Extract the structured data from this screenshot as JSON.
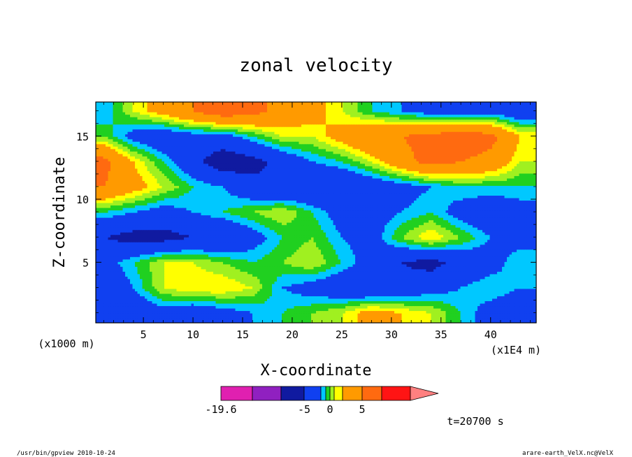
{
  "chart_data": {
    "type": "heatmap",
    "title": "zonal velocity",
    "xlabel": "X-coordinate",
    "ylabel": "Z-coordinate",
    "x_unit": "(x1E4 m)",
    "y_unit": "(x1000 m)",
    "xlim": [
      0.2,
      44.6
    ],
    "ylim": [
      0.2,
      17.7
    ],
    "x_ticks": [
      "5",
      "10",
      "15",
      "20",
      "25",
      "30",
      "35",
      "40"
    ],
    "y_ticks": [
      "5",
      "10",
      "15"
    ],
    "x_tick_values": [
      5,
      10,
      15,
      20,
      25,
      30,
      35,
      40
    ],
    "y_tick_values": [
      5,
      10,
      15
    ],
    "field": {
      "x": [
        1,
        4,
        7,
        10,
        13,
        16,
        19,
        22,
        25,
        28,
        31,
        34,
        37,
        40,
        43
      ],
      "z": [
        1,
        3,
        5,
        7,
        9,
        11,
        13,
        15,
        17
      ],
      "values": [
        [
          -5,
          -4,
          -3,
          -4,
          -3,
          -2,
          -1,
          0,
          1,
          3,
          2,
          1,
          -1,
          -3,
          -4
        ],
        [
          -4,
          -2,
          1,
          2,
          2,
          1,
          -2,
          -3,
          -4,
          -5,
          -4,
          -3,
          -2,
          -1,
          -2
        ],
        [
          -3,
          -1,
          1,
          1,
          0,
          -1,
          0,
          1,
          -1,
          -3,
          -5,
          -6,
          -4,
          -3,
          -1
        ],
        [
          -5,
          -6,
          -6,
          -5,
          -5,
          -3,
          -1,
          0,
          -2,
          -3,
          0,
          2,
          0,
          -2,
          -3
        ],
        [
          -1,
          -2,
          -3,
          -2,
          -1,
          0,
          1,
          -1,
          -3,
          -3,
          -2,
          -1,
          -3,
          -4,
          -3
        ],
        [
          5,
          3,
          1,
          -1,
          -2,
          -4,
          -5,
          -5,
          -5,
          -4,
          -3,
          -2,
          -1,
          -1,
          -1
        ],
        [
          6,
          2,
          -1,
          -4,
          -7,
          -6,
          -4,
          -2,
          -1,
          1,
          4,
          6,
          5,
          4,
          1
        ],
        [
          0,
          -3,
          -4,
          -3,
          -3,
          -1,
          1,
          1,
          3,
          5,
          5,
          6,
          7,
          6,
          2
        ],
        [
          -2,
          1,
          3,
          5,
          7,
          6,
          4,
          3,
          1,
          -1,
          -2,
          -3,
          -4,
          -3,
          -4
        ]
      ]
    },
    "colorbar": {
      "colors": [
        "#e020b0",
        "#9020c0",
        "#101aa0",
        "#1040f0",
        "#00c8ff",
        "#20d020",
        "#a0f020",
        "#ffff00",
        "#ff9a00",
        "#ff6a10",
        "#ff1414",
        "#ff8080"
      ],
      "bounds": [
        -19.6,
        -15,
        -10,
        -5,
        -2,
        -1,
        0,
        1,
        2,
        5,
        7.5,
        10
      ],
      "tick_labels": [
        "-19.6",
        "-5",
        "0",
        "5"
      ]
    }
  },
  "time_label": "t=20700 s",
  "footer_left": "/usr/bin/gpview 2010-10-24",
  "footer_right": "arare-earth_VelX.nc@VelX"
}
